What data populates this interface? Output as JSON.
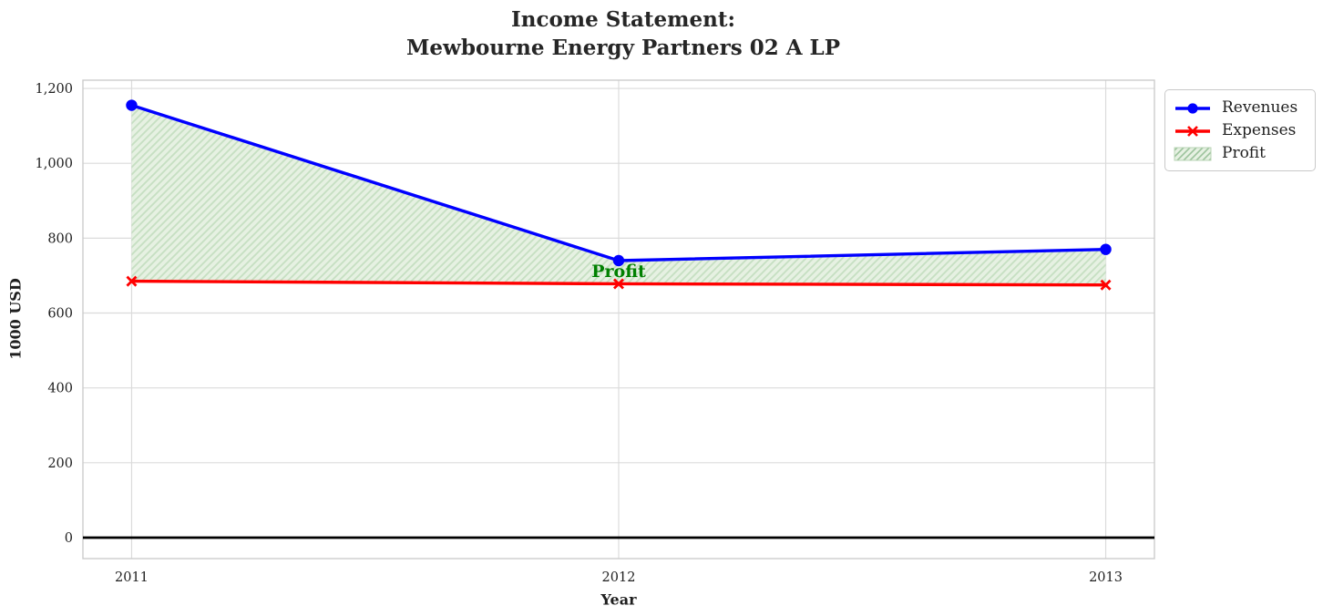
{
  "title": {
    "line1": "Income Statement:",
    "line2": "Mewbourne Energy Partners 02 A LP"
  },
  "chart_data": {
    "type": "line",
    "x": [
      2011,
      2012,
      2013
    ],
    "xtick_labels": [
      "2011",
      "2012",
      "2013"
    ],
    "series": [
      {
        "name": "Revenues",
        "values": [
          1155,
          740,
          770
        ],
        "color": "#0000ff",
        "marker": "circle"
      },
      {
        "name": "Expenses",
        "values": [
          685,
          678,
          675
        ],
        "color": "#ff0000",
        "marker": "x"
      }
    ],
    "profit": {
      "label": "Profit",
      "between": [
        "Revenues",
        "Expenses"
      ],
      "fill_color": "#e6f1e2",
      "hatch_color": "#c6dfc2",
      "hatch_style": "///"
    },
    "annotation": {
      "text": "Profit",
      "x": 2012,
      "y": 710,
      "color": "#008000"
    },
    "xlabel": "Year",
    "ylabel": "1000 USD",
    "yticks": [
      0,
      200,
      400,
      600,
      800,
      1000,
      1200
    ],
    "ytick_labels": [
      "0",
      "200",
      "400",
      "600",
      "800",
      "1,000",
      "1,200"
    ],
    "xlim": [
      2010.9,
      2013.1
    ],
    "ylim": [
      -56,
      1222
    ],
    "grid": true,
    "zero_line": true,
    "legend_position": "upper right, outside axes",
    "colors": {
      "grid": "#dbdbdb",
      "spine": "#cccccc",
      "tick_text": "#1f1f1f",
      "zero_line": "#000000"
    }
  }
}
